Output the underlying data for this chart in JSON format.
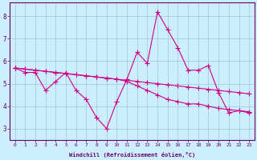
{
  "xlabel": "Windchill (Refroidissement éolien,°C)",
  "background_color": "#cceeff",
  "grid_color": "#99cccc",
  "line_color": "#cc0088",
  "spine_color": "#660066",
  "xlim": [
    -0.5,
    23.5
  ],
  "ylim": [
    2.5,
    8.6
  ],
  "yticks": [
    3,
    4,
    5,
    6,
    7,
    8
  ],
  "xticks": [
    0,
    1,
    2,
    3,
    4,
    5,
    6,
    7,
    8,
    9,
    10,
    11,
    12,
    13,
    14,
    15,
    16,
    17,
    18,
    19,
    20,
    21,
    22,
    23
  ],
  "line1_x": [
    0,
    1,
    2,
    3,
    4,
    5,
    6,
    7,
    8,
    9,
    10,
    11,
    12,
    13,
    14,
    15,
    16,
    17,
    18,
    19,
    20,
    21,
    22,
    23
  ],
  "line1_y": [
    5.7,
    5.65,
    5.6,
    5.55,
    5.5,
    5.45,
    5.4,
    5.35,
    5.3,
    5.25,
    5.2,
    5.15,
    5.1,
    5.05,
    5.0,
    4.95,
    4.9,
    4.85,
    4.8,
    4.75,
    4.7,
    4.65,
    4.6,
    4.55
  ],
  "line2_x": [
    0,
    1,
    2,
    3,
    4,
    5,
    6,
    7,
    8,
    9,
    10,
    11,
    12,
    13,
    14,
    15,
    16,
    17,
    18,
    19,
    20,
    21,
    22,
    23
  ],
  "line2_y": [
    5.7,
    5.65,
    5.6,
    5.55,
    5.5,
    5.45,
    5.4,
    5.35,
    5.3,
    5.25,
    5.2,
    5.1,
    4.9,
    4.7,
    4.5,
    4.3,
    4.2,
    4.1,
    4.1,
    4.0,
    3.9,
    3.85,
    3.8,
    3.75
  ],
  "line3_x": [
    0,
    1,
    2,
    3,
    4,
    5,
    6,
    7,
    8,
    9,
    10,
    11,
    12,
    13,
    14,
    15,
    16,
    17,
    18,
    19,
    20,
    21,
    22,
    23
  ],
  "line3_y": [
    5.7,
    5.5,
    5.5,
    4.7,
    5.1,
    5.5,
    4.7,
    4.3,
    3.5,
    3.0,
    4.2,
    5.2,
    6.4,
    5.9,
    8.2,
    7.4,
    6.6,
    5.6,
    5.6,
    5.8,
    4.6,
    3.7,
    3.8,
    3.7
  ]
}
